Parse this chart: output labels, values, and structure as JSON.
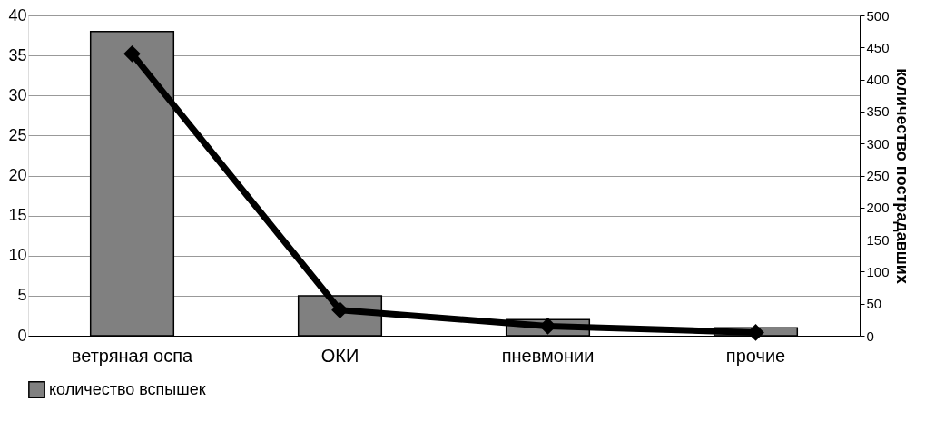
{
  "chart_data": {
    "type": "bar",
    "categories": [
      "ветряная оспа",
      "ОКИ",
      "пневмонии",
      "прочие"
    ],
    "series": [
      {
        "name": "количество вспышек",
        "color": "#808080",
        "values": [
          38,
          5,
          2,
          1
        ]
      },
      {
        "type": "line",
        "axis": "y2",
        "color": "#000000",
        "values": [
          440,
          40,
          15,
          5
        ],
        "marker": "diamond",
        "line_style": "solid"
      }
    ],
    "y2label": "количество пострадавших",
    "ylim": [
      0,
      40
    ],
    "yticks": [
      0,
      5,
      10,
      15,
      20,
      25,
      30,
      35,
      40
    ],
    "y2lim": [
      0,
      500
    ],
    "y2ticks": [
      0,
      50,
      100,
      150,
      200,
      250,
      300,
      350,
      400,
      450,
      500
    ],
    "grid": "y",
    "legend": "bottom"
  }
}
